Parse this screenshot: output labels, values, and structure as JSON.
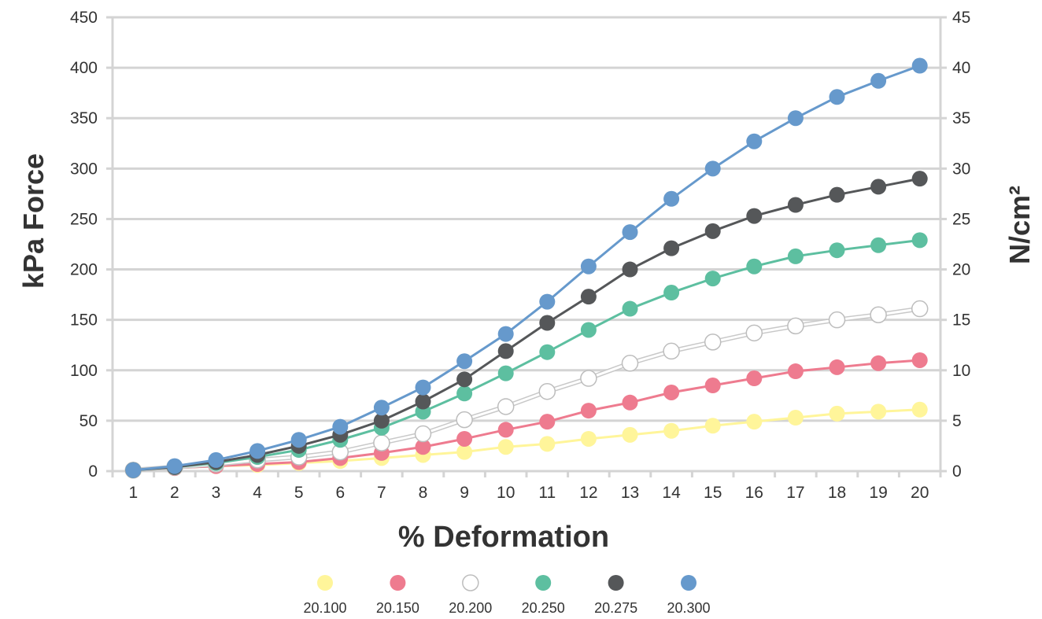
{
  "chart_data": {
    "type": "line",
    "x": [
      1,
      2,
      3,
      4,
      5,
      6,
      7,
      8,
      9,
      10,
      11,
      12,
      13,
      14,
      15,
      16,
      17,
      18,
      19,
      20
    ],
    "xlabel": "% Deformation",
    "ylabel": "kPa Force",
    "y2label": "N/cm²",
    "ylim": [
      0,
      450
    ],
    "y2lim": [
      0,
      45
    ],
    "yticks": [
      0,
      50,
      100,
      150,
      200,
      250,
      300,
      350,
      400,
      450
    ],
    "y2ticks": [
      0,
      5,
      10,
      15,
      20,
      25,
      30,
      35,
      40,
      45
    ],
    "grid": "horizontal",
    "legend_position": "bottom",
    "series": [
      {
        "name": "20.100",
        "color": "#FFF59A",
        "values": [
          1,
          3,
          5,
          6,
          8,
          10,
          13,
          16,
          19,
          24,
          27,
          32,
          36,
          40,
          45,
          49,
          53,
          57,
          59,
          61
        ]
      },
      {
        "name": "20.150",
        "color": "#EE7B8F",
        "values": [
          1,
          3,
          5,
          7,
          9,
          13,
          18,
          24,
          32,
          41,
          49,
          60,
          68,
          78,
          85,
          92,
          99,
          103,
          107,
          110
        ]
      },
      {
        "name": "20.200",
        "color": "#FFFFFF",
        "values": [
          1,
          4,
          7,
          11,
          14,
          19,
          28,
          37,
          51,
          64,
          79,
          92,
          107,
          119,
          128,
          137,
          144,
          150,
          155,
          161
        ]
      },
      {
        "name": "20.250",
        "color": "#5DBFA0",
        "values": [
          1,
          4,
          8,
          14,
          21,
          31,
          43,
          59,
          77,
          97,
          118,
          140,
          161,
          177,
          191,
          203,
          213,
          219,
          224,
          229
        ]
      },
      {
        "name": "20.275",
        "color": "#555759",
        "values": [
          1,
          4,
          9,
          16,
          25,
          36,
          50,
          69,
          91,
          119,
          147,
          173,
          200,
          221,
          238,
          253,
          264,
          274,
          282,
          290
        ]
      },
      {
        "name": "20.300",
        "color": "#6699CC",
        "values": [
          1,
          5,
          11,
          20,
          31,
          44,
          63,
          83,
          109,
          136,
          168,
          203,
          237,
          270,
          300,
          327,
          350,
          371,
          387,
          402
        ]
      }
    ]
  }
}
